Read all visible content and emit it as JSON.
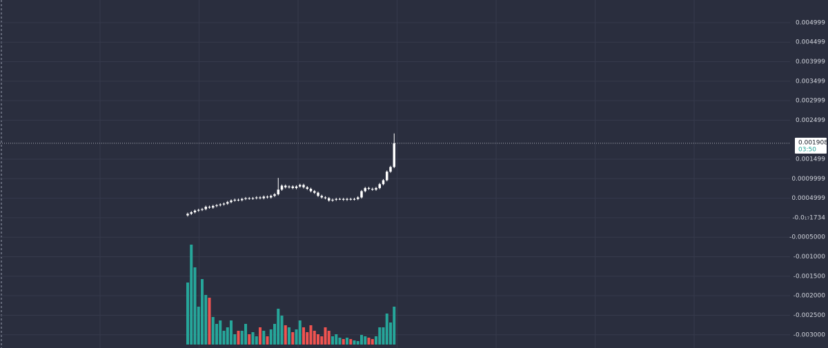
{
  "chart_data": {
    "type": "candlestick",
    "open": [
      6e-05,
      0.0001,
      0.00014,
      0.00018,
      0.0002,
      0.00022,
      0.00028,
      0.00026,
      0.0003,
      0.00032,
      0.00034,
      0.00036,
      0.0004,
      0.00044,
      0.00046,
      0.00045,
      0.00048,
      0.0005,
      0.00049,
      0.0005,
      0.00052,
      0.0005,
      0.00054,
      0.00052,
      0.00056,
      0.0006,
      0.00072,
      0.00082,
      0.00078,
      0.0008,
      0.00076,
      0.0008,
      0.00084,
      0.00078,
      0.00074,
      0.00068,
      0.00064,
      0.00056,
      0.00052,
      0.0005,
      0.00044,
      0.00046,
      0.00048,
      0.00048,
      0.00046,
      0.00048,
      0.00047,
      0.00048,
      0.00052,
      0.00068,
      0.00076,
      0.00074,
      0.00072,
      0.00076,
      0.00086,
      0.00096,
      0.00118,
      0.0013
    ],
    "high": [
      0.00013,
      0.00017,
      0.00021,
      0.00023,
      0.00025,
      0.00031,
      0.00031,
      0.00033,
      0.00035,
      0.00037,
      0.00039,
      0.00043,
      0.00047,
      0.00049,
      0.00049,
      0.00051,
      0.00053,
      0.00053,
      0.00053,
      0.00055,
      0.00055,
      0.00057,
      0.00057,
      0.00059,
      0.00063,
      0.00102,
      0.00085,
      0.00085,
      0.00083,
      0.00083,
      0.00083,
      0.00087,
      0.00087,
      0.00081,
      0.00077,
      0.00071,
      0.00067,
      0.00059,
      0.00055,
      0.00053,
      0.00049,
      0.00051,
      0.00051,
      0.00051,
      0.00051,
      0.00051,
      0.00051,
      0.00055,
      0.00071,
      0.00079,
      0.00079,
      0.00077,
      0.00079,
      0.00089,
      0.00099,
      0.00121,
      0.00133,
      0.00216
    ],
    "low": [
      3e-05,
      7e-05,
      0.00011,
      0.00015,
      0.00017,
      0.00019,
      0.00023,
      0.00023,
      0.00027,
      0.00029,
      0.00031,
      0.00033,
      0.00037,
      0.00041,
      0.00042,
      0.00042,
      0.00045,
      0.00046,
      0.00046,
      0.00047,
      0.00047,
      0.00047,
      0.00049,
      0.00049,
      0.00053,
      0.00057,
      0.00069,
      0.00075,
      0.00075,
      0.00073,
      0.00073,
      0.00077,
      0.00075,
      0.00071,
      0.00065,
      0.00061,
      0.00053,
      0.00049,
      0.00047,
      0.00041,
      0.00041,
      0.00043,
      0.00045,
      0.00043,
      0.00043,
      0.00044,
      0.00044,
      0.00045,
      0.00049,
      0.00065,
      0.00071,
      0.00069,
      0.00069,
      0.00073,
      0.00083,
      0.00093,
      0.00115,
      0.00127
    ],
    "close": [
      0.0001,
      0.00014,
      0.00018,
      0.0002,
      0.00022,
      0.00028,
      0.00026,
      0.0003,
      0.00032,
      0.00034,
      0.00036,
      0.0004,
      0.00044,
      0.00046,
      0.00045,
      0.00048,
      0.0005,
      0.00049,
      0.0005,
      0.00052,
      0.0005,
      0.00054,
      0.00052,
      0.00056,
      0.0006,
      0.00072,
      0.00082,
      0.00078,
      0.0008,
      0.00076,
      0.0008,
      0.00084,
      0.00078,
      0.00074,
      0.00068,
      0.00064,
      0.00056,
      0.00052,
      0.0005,
      0.00044,
      0.00046,
      0.00048,
      0.00048,
      0.00046,
      0.00048,
      0.00047,
      0.00048,
      0.00052,
      0.00068,
      0.00076,
      0.00074,
      0.00072,
      0.00076,
      0.00086,
      0.00096,
      0.00118,
      0.0013,
      0.001908
    ],
    "volume": [
      90,
      145,
      112,
      55,
      95,
      72,
      68,
      40,
      30,
      35,
      20,
      25,
      35,
      15,
      20,
      20,
      30,
      15,
      18,
      12,
      25,
      20,
      12,
      22,
      30,
      52,
      42,
      28,
      25,
      18,
      22,
      35,
      25,
      18,
      28,
      20,
      15,
      12,
      25,
      20,
      12,
      15,
      10,
      8,
      10,
      8,
      6,
      5,
      14,
      12,
      10,
      8,
      12,
      25,
      25,
      45,
      32,
      55
    ],
    "candle_color": "#ffffff",
    "up_color": "#26a69a",
    "down_color": "#ef5350",
    "countdown": "03:50",
    "ylim": [
      -0.00334,
      0.00558
    ],
    "yticks": [
      0.004999,
      0.004499,
      0.003999,
      0.003499,
      0.002999,
      0.002499,
      0.001499,
      0.0009999,
      0.0004999,
      {
        "value": -1.734e-18,
        "label": "-0.0₁₇1734"
      },
      {
        "value": -0.0005,
        "label": "-0.0005000"
      },
      {
        "value": -0.001,
        "label": "-0.001000"
      },
      {
        "value": -0.0015,
        "label": "-0.001500"
      },
      {
        "value": -0.002,
        "label": "-0.002000"
      },
      {
        "value": -0.0025,
        "label": "-0.002500"
      },
      {
        "value": -0.003,
        "label": "-0.003000"
      }
    ],
    "grid": true
  }
}
